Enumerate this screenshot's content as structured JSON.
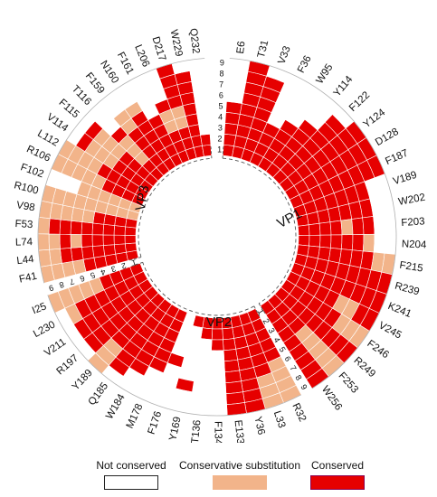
{
  "colors": {
    "not_conserved": "#ffffff",
    "conservative": "#f2b48a",
    "conserved": "#e60000",
    "grid": "#b0b0b0"
  },
  "protein_labels": {
    "vp1": "VP1",
    "vp2": "VP2",
    "vp3": "VP3"
  },
  "position_numbers": [
    "1",
    "2",
    "3",
    "4",
    "5",
    "6",
    "7",
    "8",
    "9"
  ],
  "legend": {
    "not_conserved": "Not conserved",
    "conservative": "Conservative substitution",
    "conserved": "Conserved"
  },
  "chart_data": {
    "type": "heatmap",
    "rows": [
      "1",
      "2",
      "3",
      "4",
      "5",
      "6",
      "7",
      "8",
      "9"
    ],
    "value_codes": {
      "0": "Not conserved",
      "1": "Conservative substitution",
      "2": "Conserved"
    },
    "segments": [
      {
        "protein": "VP1",
        "residues": [
          {
            "label": "E6",
            "levels": [
              2,
              2,
              2,
              2,
              2,
              0,
              0,
              0,
              0
            ]
          },
          {
            "label": "T31",
            "levels": [
              2,
              2,
              2,
              2,
              2,
              2,
              2,
              2,
              2
            ]
          },
          {
            "label": "V33",
            "levels": [
              2,
              2,
              2,
              2,
              2,
              2,
              2,
              2,
              0
            ]
          },
          {
            "label": "F36",
            "levels": [
              2,
              2,
              2,
              2,
              0,
              0,
              0,
              0,
              0
            ]
          },
          {
            "label": "W95",
            "levels": [
              2,
              2,
              2,
              2,
              2,
              0,
              0,
              0,
              0
            ]
          },
          {
            "label": "Y114",
            "levels": [
              2,
              2,
              2,
              2,
              2,
              2,
              0,
              0,
              0
            ]
          },
          {
            "label": "F122",
            "levels": [
              2,
              2,
              2,
              2,
              2,
              2,
              2,
              2,
              0
            ]
          },
          {
            "label": "Y124",
            "levels": [
              2,
              2,
              2,
              2,
              2,
              2,
              2,
              2,
              2
            ]
          },
          {
            "label": "D128",
            "levels": [
              2,
              2,
              2,
              2,
              2,
              2,
              2,
              2,
              2
            ]
          },
          {
            "label": "F187",
            "levels": [
              2,
              2,
              2,
              2,
              2,
              2,
              2,
              2,
              2
            ]
          },
          {
            "label": "V189",
            "levels": [
              2,
              2,
              2,
              2,
              2,
              2,
              2,
              0,
              0
            ]
          },
          {
            "label": "W202",
            "levels": [
              2,
              2,
              2,
              2,
              2,
              2,
              2,
              0,
              0
            ]
          },
          {
            "label": "F203",
            "levels": [
              2,
              2,
              2,
              2,
              1,
              2,
              2,
              0,
              0
            ]
          },
          {
            "label": "N204",
            "levels": [
              2,
              2,
              2,
              2,
              2,
              2,
              1,
              0,
              0
            ]
          },
          {
            "label": "F215",
            "levels": [
              2,
              2,
              2,
              2,
              2,
              2,
              2,
              1,
              1
            ]
          },
          {
            "label": "R239",
            "levels": [
              2,
              2,
              2,
              2,
              2,
              2,
              2,
              2,
              2
            ]
          },
          {
            "label": "K241",
            "levels": [
              2,
              2,
              2,
              2,
              2,
              2,
              2,
              2,
              2
            ]
          },
          {
            "label": "V245",
            "levels": [
              2,
              2,
              2,
              2,
              2,
              1,
              1,
              2,
              2
            ]
          },
          {
            "label": "F246",
            "levels": [
              2,
              2,
              2,
              2,
              2,
              2,
              1,
              1,
              1
            ]
          },
          {
            "label": "R249",
            "levels": [
              2,
              2,
              2,
              2,
              2,
              2,
              2,
              2,
              2
            ]
          },
          {
            "label": "F253",
            "levels": [
              2,
              2,
              2,
              2,
              1,
              1,
              1,
              1,
              1
            ]
          },
          {
            "label": "W256",
            "levels": [
              2,
              2,
              2,
              2,
              2,
              2,
              2,
              2,
              2
            ]
          }
        ]
      },
      {
        "protein": "VP2",
        "residues": [
          {
            "label": "R32",
            "levels": [
              2,
              2,
              2,
              2,
              2,
              1,
              1,
              1,
              1
            ]
          },
          {
            "label": "L33",
            "levels": [
              2,
              2,
              2,
              2,
              2,
              2,
              1,
              1,
              1
            ]
          },
          {
            "label": "Y36",
            "levels": [
              2,
              2,
              2,
              2,
              2,
              2,
              2,
              2,
              2
            ]
          },
          {
            "label": "E133",
            "levels": [
              2,
              2,
              2,
              2,
              2,
              2,
              2,
              2,
              2
            ]
          },
          {
            "label": "F134",
            "levels": [
              2,
              2,
              2,
              0,
              0,
              0,
              0,
              0,
              0
            ]
          },
          {
            "label": "T136",
            "levels": [
              2,
              2,
              0,
              0,
              0,
              0,
              0,
              0,
              0
            ]
          },
          {
            "label": "Y169",
            "levels": [
              2,
              0,
              0,
              0,
              0,
              0,
              2,
              0,
              0
            ]
          },
          {
            "label": "F176",
            "levels": [
              0,
              0,
              0,
              0,
              2,
              0,
              0,
              0,
              0
            ]
          },
          {
            "label": "M178",
            "levels": [
              2,
              2,
              2,
              2,
              2,
              2,
              0,
              0,
              0
            ]
          },
          {
            "label": "W184",
            "levels": [
              2,
              2,
              2,
              2,
              2,
              2,
              2,
              0,
              0
            ]
          },
          {
            "label": "Q185",
            "levels": [
              2,
              2,
              2,
              2,
              2,
              2,
              2,
              2,
              0
            ]
          },
          {
            "label": "Y189",
            "levels": [
              2,
              2,
              2,
              2,
              2,
              2,
              1,
              1,
              1
            ]
          },
          {
            "label": "R197",
            "levels": [
              2,
              2,
              2,
              2,
              2,
              2,
              2,
              2,
              0
            ]
          },
          {
            "label": "V211",
            "levels": [
              2,
              2,
              2,
              2,
              2,
              2,
              2,
              2,
              0
            ]
          },
          {
            "label": "L230",
            "levels": [
              2,
              2,
              2,
              2,
              2,
              2,
              2,
              1,
              0
            ]
          },
          {
            "label": "I25",
            "levels": [
              2,
              2,
              2,
              2,
              1,
              1,
              1,
              1,
              1
            ]
          }
        ]
      },
      {
        "protein": "VP3",
        "residues": [
          {
            "label": "F41",
            "levels": [
              2,
              2,
              2,
              2,
              2,
              1,
              1,
              1,
              1
            ]
          },
          {
            "label": "L44",
            "levels": [
              2,
              2,
              2,
              2,
              2,
              2,
              2,
              1,
              1
            ]
          },
          {
            "label": "L74",
            "levels": [
              2,
              2,
              2,
              2,
              2,
              1,
              2,
              1,
              1
            ]
          },
          {
            "label": "F53",
            "levels": [
              2,
              2,
              2,
              2,
              2,
              2,
              2,
              2,
              1
            ]
          },
          {
            "label": "V98",
            "levels": [
              2,
              2,
              2,
              2,
              1,
              1,
              1,
              1,
              1
            ]
          },
          {
            "label": "R100",
            "levels": [
              1,
              1,
              1,
              1,
              1,
              1,
              1,
              1,
              1
            ]
          },
          {
            "label": "F102",
            "levels": [
              1,
              1,
              1,
              1,
              1,
              1,
              0,
              0,
              0
            ]
          },
          {
            "label": "R106",
            "levels": [
              2,
              2,
              2,
              2,
              1,
              1,
              1,
              1,
              1
            ]
          },
          {
            "label": "L112",
            "levels": [
              2,
              2,
              2,
              2,
              2,
              1,
              1,
              1,
              1
            ]
          },
          {
            "label": "V114",
            "levels": [
              2,
              2,
              2,
              2,
              1,
              1,
              1,
              2,
              0
            ]
          },
          {
            "label": "F115",
            "levels": [
              2,
              2,
              2,
              2,
              1,
              1,
              1,
              2,
              0
            ]
          },
          {
            "label": "T116",
            "levels": [
              2,
              2,
              1,
              1,
              1,
              2,
              0,
              0,
              0
            ]
          },
          {
            "label": "F159",
            "levels": [
              2,
              2,
              2,
              2,
              2,
              1,
              1,
              0,
              0
            ]
          },
          {
            "label": "N160",
            "levels": [
              2,
              2,
              2,
              2,
              2,
              2,
              1,
              0,
              0
            ]
          },
          {
            "label": "F161",
            "levels": [
              2,
              2,
              2,
              2,
              2,
              0,
              0,
              0,
              0
            ]
          },
          {
            "label": "L206",
            "levels": [
              2,
              2,
              2,
              1,
              1,
              2,
              0,
              0,
              0
            ]
          },
          {
            "label": "D217",
            "levels": [
              2,
              2,
              2,
              1,
              1,
              2,
              2,
              2,
              2
            ]
          },
          {
            "label": "W229",
            "levels": [
              2,
              2,
              2,
              2,
              2,
              2,
              2,
              2,
              0
            ]
          },
          {
            "label": "Q232",
            "levels": [
              2,
              2,
              0,
              0,
              0,
              0,
              0,
              0,
              0
            ]
          }
        ]
      }
    ]
  }
}
